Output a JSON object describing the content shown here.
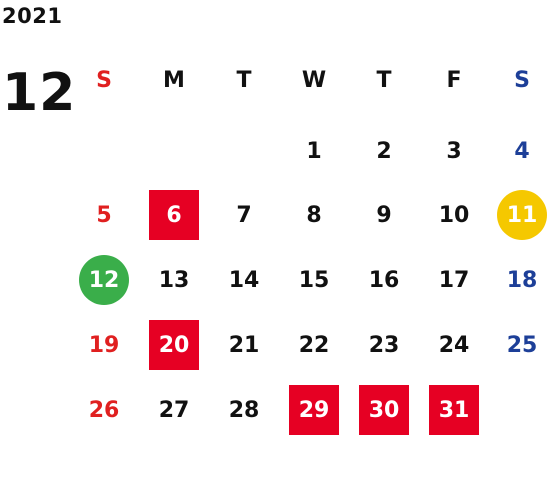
{
  "year": "2021",
  "month": "12",
  "colors": {
    "sunday_text": "#e02020",
    "saturday_text": "#1d3f98",
    "highlight_red": "#e60023",
    "highlight_yellow": "#f5c800",
    "highlight_green": "#3aae4a"
  },
  "weekdays": [
    "S",
    "M",
    "T",
    "W",
    "T",
    "F",
    "S"
  ],
  "weeks": [
    [
      "",
      "",
      "",
      "1",
      "2",
      "3",
      "4"
    ],
    [
      "5",
      "6",
      "7",
      "8",
      "9",
      "10",
      "11"
    ],
    [
      "12",
      "13",
      "14",
      "15",
      "16",
      "17",
      "18"
    ],
    [
      "19",
      "20",
      "21",
      "22",
      "23",
      "24",
      "25"
    ],
    [
      "26",
      "27",
      "28",
      "29",
      "30",
      "31",
      ""
    ]
  ],
  "highlights": {
    "6": "red-square",
    "20": "red-square",
    "29": "red-square",
    "30": "red-square",
    "31": "red-square",
    "11": "yellow-circle",
    "12": "green-circle"
  }
}
